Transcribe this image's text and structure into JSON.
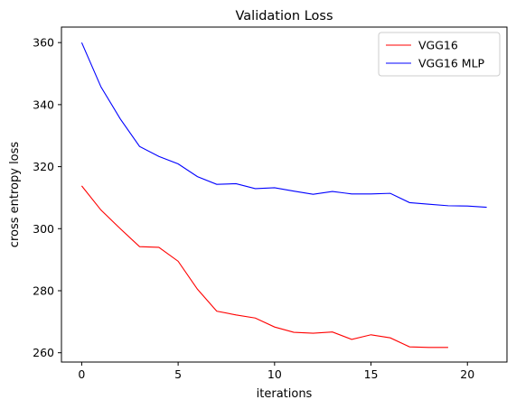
{
  "chart_data": {
    "type": "line",
    "title": "Validation Loss",
    "xlabel": "iterations",
    "ylabel": "cross entropy loss",
    "xlim": [
      -1.05,
      22.05
    ],
    "ylim": [
      257.0,
      365.0
    ],
    "xticks": [
      0,
      5,
      10,
      15,
      20
    ],
    "yticks": [
      260,
      280,
      300,
      320,
      340,
      360
    ],
    "grid": false,
    "legend": "top-right",
    "series": [
      {
        "name": "VGG16",
        "color": "#ff0000",
        "x": [
          0,
          1,
          2,
          3,
          4,
          5,
          6,
          7,
          8,
          9,
          10,
          11,
          12,
          13,
          14,
          15,
          16,
          17,
          18,
          19
        ],
        "values": [
          313.8,
          306.0,
          300.0,
          294.2,
          294.0,
          289.5,
          280.5,
          273.4,
          272.2,
          271.2,
          268.3,
          266.6,
          266.3,
          266.7,
          264.3,
          265.8,
          264.8,
          261.9,
          261.7,
          261.7
        ]
      },
      {
        "name": "VGG16 MLP",
        "color": "#0000ff",
        "x": [
          0,
          1,
          2,
          3,
          4,
          5,
          6,
          7,
          8,
          9,
          10,
          11,
          12,
          13,
          14,
          15,
          16,
          17,
          18,
          19,
          20,
          21
        ],
        "values": [
          360.0,
          345.7,
          335.4,
          326.5,
          323.3,
          320.9,
          316.8,
          314.3,
          314.5,
          312.9,
          313.2,
          312.1,
          311.1,
          312.0,
          311.2,
          311.2,
          311.4,
          308.4,
          307.9,
          307.4,
          307.3,
          306.9
        ]
      }
    ]
  }
}
